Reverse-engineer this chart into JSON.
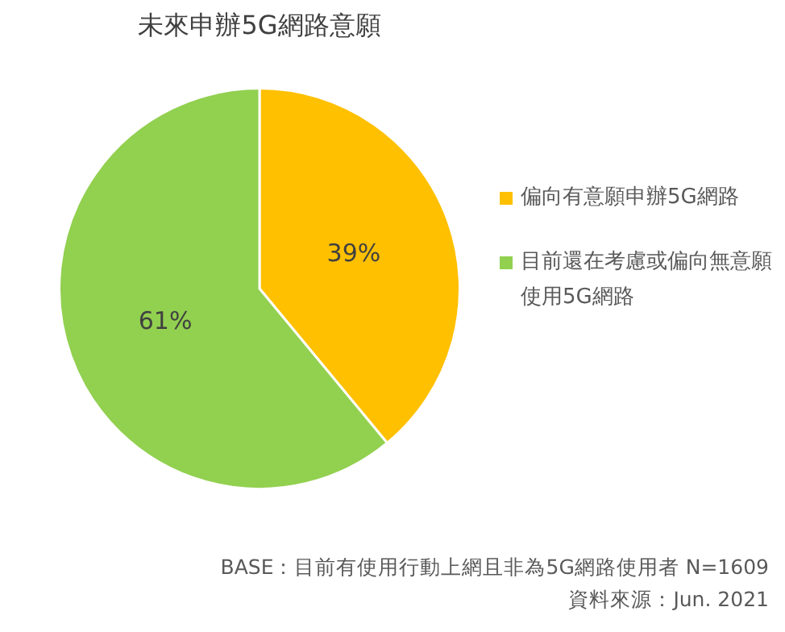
{
  "chart_data": {
    "type": "pie",
    "title": "未來申辦5G網路意願",
    "categories": [
      "偏向有意願申辦5G網路",
      "目前還在考慮或偏向無意願使用5G網路"
    ],
    "values": [
      39,
      61
    ],
    "colors": [
      "#ffc000",
      "#92d050"
    ],
    "value_labels": [
      "39%",
      "61%"
    ],
    "legend": "right",
    "annotations": [
      "BASE：目前有使用行動上網且非為5G網路使用者 N=1609",
      "資料來源：Jun. 2021"
    ]
  }
}
